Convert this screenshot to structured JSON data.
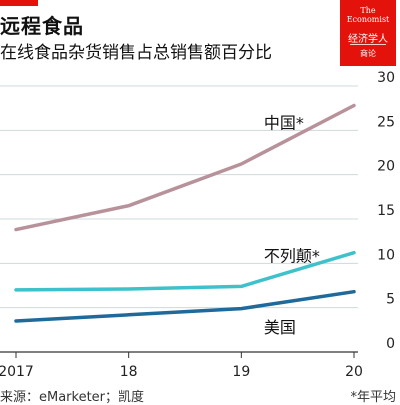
{
  "header": {
    "title": "远程食品",
    "subtitle": "在线食品杂货销售占总销售额百分比"
  },
  "logo": {
    "line1": "The",
    "line2": "Economist",
    "line3": "经济学人",
    "line4": "商论"
  },
  "footer": {
    "source": "来源：eMarketer；凯度",
    "note": "*年平均"
  },
  "colors": {
    "china": "#b8929b",
    "uk": "#3fc1cc",
    "us": "#1f6a9a",
    "accent": "#e3120b"
  },
  "chart_data": {
    "type": "line",
    "title": "远程食品",
    "subtitle": "在线食品杂货销售占总销售额百分比",
    "xlabel": "",
    "ylabel": "",
    "x": [
      2017,
      2018,
      2019,
      2020
    ],
    "x_tick_labels": [
      "2017",
      "18",
      "19",
      "20"
    ],
    "y_ticks": [
      0,
      5,
      10,
      15,
      20,
      25,
      30
    ],
    "y_tick_labels": [
      "0",
      "5",
      "10",
      "15",
      "20",
      "25",
      "30"
    ],
    "ylim": [
      0,
      30
    ],
    "y_axis_side": "right",
    "grid": true,
    "series": [
      {
        "name": "中国*",
        "color_key": "china",
        "values": [
          13.8,
          16.5,
          21.2,
          27.8
        ]
      },
      {
        "name": "不列颠*",
        "color_key": "uk",
        "values": [
          7.0,
          7.1,
          7.4,
          11.2
        ]
      },
      {
        "name": "美国",
        "color_key": "us",
        "values": [
          3.5,
          4.2,
          4.9,
          6.8
        ]
      }
    ]
  }
}
